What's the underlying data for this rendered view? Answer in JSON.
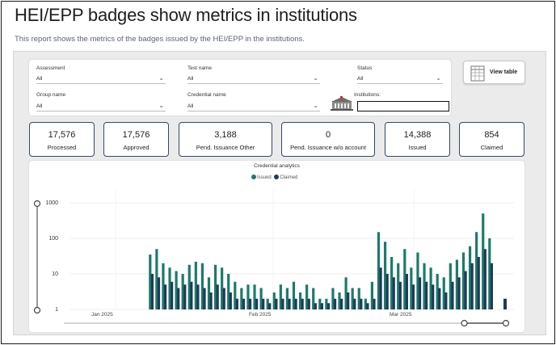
{
  "header": {
    "title": "HEI/EPP badges show metrics in institutions",
    "subtitle": "This report shows the metrics of the badges issued by the HEI/EPP in the institutions."
  },
  "filters": {
    "assessment": {
      "label": "Assessment",
      "value": "All"
    },
    "test_name": {
      "label": "Test name",
      "value": "All"
    },
    "status": {
      "label": "Status",
      "value": "All"
    },
    "group_name": {
      "label": "Group name",
      "value": "All"
    },
    "credential_name": {
      "label": "Credential name",
      "value": "All"
    },
    "institutions": {
      "label": "Institutions:",
      "value": ""
    }
  },
  "view_table": {
    "label": "View table",
    "icon": "table-icon"
  },
  "cards": [
    {
      "value": "17,576",
      "label": "Processed"
    },
    {
      "value": "17,576",
      "label": "Approved"
    },
    {
      "value": "3,188",
      "label": "Pend. Issuance Other"
    },
    {
      "value": "0",
      "label": "Pend. Issuance w/o account"
    },
    {
      "value": "14,388",
      "label": "Issued"
    },
    {
      "value": "854",
      "label": "Claimed"
    }
  ],
  "colors": {
    "issued": "#1e7a6c",
    "claimed": "#1f3b57",
    "card_border": "#2f4a6b"
  },
  "chart_data": {
    "type": "bar",
    "title": "Credential analytics",
    "scale": "log",
    "ylim": [
      1,
      1000
    ],
    "yticks": [
      "1",
      "10",
      "100",
      "1000"
    ],
    "xticks": [
      "Jan 2025",
      "Feb 2025",
      "Mar 2025"
    ],
    "legend_placement": "top-center",
    "series": [
      {
        "name": "Issued",
        "color": "#1e7a6c",
        "values": [
          35,
          50,
          20,
          15,
          12,
          10,
          18,
          22,
          20,
          8,
          18,
          15,
          10,
          6,
          4,
          5,
          5,
          4,
          2,
          3,
          5,
          4,
          6,
          3,
          5,
          4,
          2,
          2,
          4,
          3,
          8,
          4,
          4,
          2,
          6,
          150,
          80,
          30,
          20,
          50,
          15,
          40,
          20,
          15,
          10,
          8,
          20,
          25,
          40,
          60,
          150,
          500,
          100
        ]
      },
      {
        "name": "Claimed",
        "color": "#1f3b57",
        "values": [
          10,
          8,
          5,
          6,
          4,
          5,
          6,
          5,
          4,
          3,
          5,
          4,
          3,
          2,
          2,
          2,
          2,
          2,
          1.5,
          2,
          2,
          2,
          2,
          2,
          2,
          1.5,
          1.5,
          1.5,
          2,
          2,
          3,
          2,
          2,
          1.5,
          2,
          15,
          10,
          8,
          6,
          10,
          5,
          8,
          6,
          5,
          4,
          3,
          6,
          8,
          12,
          20,
          30,
          50,
          20
        ]
      }
    ],
    "slider": {
      "y_range": [
        1,
        1000
      ],
      "x_range_fraction": [
        0.82,
        1.0
      ]
    }
  }
}
